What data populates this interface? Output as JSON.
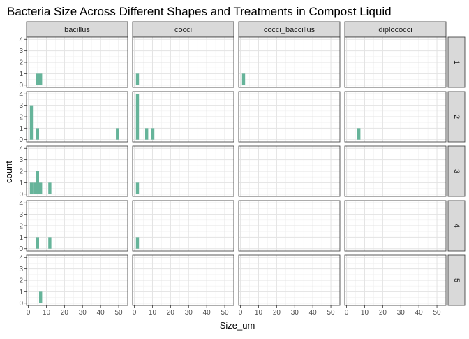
{
  "chart_data": {
    "type": "histogram",
    "title": "Bacteria Size Across Different Shapes and Treatments in Compost Liquid",
    "xlabel": "Size_um",
    "ylabel": "count",
    "xlim": [
      -1,
      55
    ],
    "ylim": [
      0,
      4
    ],
    "x_ticks": [
      "0",
      "10",
      "20",
      "30",
      "40",
      "50",
      "0",
      "10",
      "20",
      "30",
      "40",
      "50",
      "0",
      "10",
      "20",
      "30",
      "40",
      "50",
      "0",
      "10",
      "20",
      "30",
      "40",
      "50"
    ],
    "y_ticks": [
      "0",
      "1",
      "2",
      "3",
      "4"
    ],
    "bin_width": 1.7,
    "fill_color": "#66b49a",
    "strip_color": "#d9d9d9",
    "grid": true,
    "facet_columns": [
      "bacillus",
      "cocci",
      "cocci_baccillus",
      "diplococci"
    ],
    "facet_rows": [
      "1",
      "2",
      "3",
      "4",
      "5"
    ],
    "panels": [
      {
        "row": "1",
        "col": "bacillus",
        "bins": [
          {
            "x": 5.1,
            "count": 1
          },
          {
            "x": 6.8,
            "count": 1
          }
        ]
      },
      {
        "row": "1",
        "col": "cocci",
        "bins": [
          {
            "x": 1.7,
            "count": 1
          }
        ]
      },
      {
        "row": "1",
        "col": "cocci_baccillus",
        "bins": [
          {
            "x": 1.7,
            "count": 1
          }
        ]
      },
      {
        "row": "1",
        "col": "diplococci",
        "bins": []
      },
      {
        "row": "2",
        "col": "bacillus",
        "bins": [
          {
            "x": 1.7,
            "count": 3
          },
          {
            "x": 5.1,
            "count": 1
          },
          {
            "x": 49.3,
            "count": 1
          }
        ]
      },
      {
        "row": "2",
        "col": "cocci",
        "bins": [
          {
            "x": 1.7,
            "count": 4
          },
          {
            "x": 6.8,
            "count": 1
          },
          {
            "x": 10.2,
            "count": 1
          }
        ]
      },
      {
        "row": "2",
        "col": "cocci_baccillus",
        "bins": []
      },
      {
        "row": "2",
        "col": "diplococci",
        "bins": [
          {
            "x": 6.8,
            "count": 1
          }
        ]
      },
      {
        "row": "3",
        "col": "bacillus",
        "bins": [
          {
            "x": 1.7,
            "count": 1
          },
          {
            "x": 3.4,
            "count": 1
          },
          {
            "x": 5.1,
            "count": 2
          },
          {
            "x": 6.8,
            "count": 1
          },
          {
            "x": 11.9,
            "count": 1
          }
        ]
      },
      {
        "row": "3",
        "col": "cocci",
        "bins": [
          {
            "x": 1.7,
            "count": 1
          }
        ]
      },
      {
        "row": "3",
        "col": "cocci_baccillus",
        "bins": []
      },
      {
        "row": "3",
        "col": "diplococci",
        "bins": []
      },
      {
        "row": "4",
        "col": "bacillus",
        "bins": [
          {
            "x": 5.1,
            "count": 1
          },
          {
            "x": 11.9,
            "count": 1
          }
        ]
      },
      {
        "row": "4",
        "col": "cocci",
        "bins": [
          {
            "x": 1.7,
            "count": 1
          }
        ]
      },
      {
        "row": "4",
        "col": "cocci_baccillus",
        "bins": []
      },
      {
        "row": "4",
        "col": "diplococci",
        "bins": []
      },
      {
        "row": "5",
        "col": "bacillus",
        "bins": [
          {
            "x": 6.8,
            "count": 1
          }
        ]
      },
      {
        "row": "5",
        "col": "cocci",
        "bins": []
      },
      {
        "row": "5",
        "col": "cocci_baccillus",
        "bins": []
      },
      {
        "row": "5",
        "col": "diplococci",
        "bins": []
      }
    ]
  }
}
